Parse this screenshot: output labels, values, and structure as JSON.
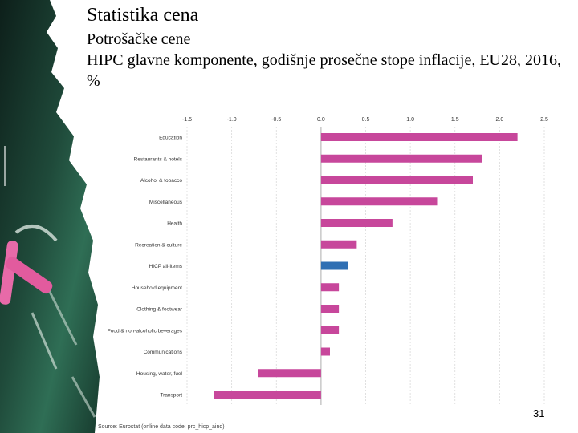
{
  "slide": {
    "title": "Statistika cena",
    "subtitle": "Potrošačke cene",
    "chart_title": "HIPC glavne komponente, godišnje prosečne stope inflacije, EU28, 2016, %",
    "source": "Source: Eurostat (online data code: prc_hicp_aind)",
    "page_number": "31"
  },
  "colors": {
    "bar": "#c7479b",
    "highlight": "#2f6fb3",
    "grid": "#d9d9d9",
    "axis": "#bbbbbb",
    "label": "#333333"
  },
  "chart_data": {
    "type": "bar",
    "orientation": "horizontal",
    "title": "HIPC glavne komponente, godišnje prosečne stope inflacije, EU28, 2016, %",
    "xlim": [
      -1.5,
      2.5
    ],
    "xticks": [
      "-1.5",
      "-1.0",
      "-0.5",
      "0.0",
      "0.5",
      "1.0",
      "1.5",
      "2.0",
      "2.5"
    ],
    "xtick_values": [
      -1.5,
      -1.0,
      -0.5,
      0.0,
      0.5,
      1.0,
      1.5,
      2.0,
      2.5
    ],
    "grid": true,
    "highlight_category": "HICP all-items",
    "categories": [
      "Education",
      "Restaurants & hotels",
      "Alcohol & tobacco",
      "Miscellaneous",
      "Health",
      "Recreation & culture",
      "HICP all-items",
      "Household equipment",
      "Clothing & footwear",
      "Food & non-alcoholic beverages",
      "Communications",
      "Housing, water, fuel",
      "Transport"
    ],
    "values": [
      2.2,
      1.8,
      1.7,
      1.3,
      0.8,
      0.4,
      0.3,
      0.2,
      0.2,
      0.2,
      0.1,
      -0.7,
      -1.2
    ]
  }
}
